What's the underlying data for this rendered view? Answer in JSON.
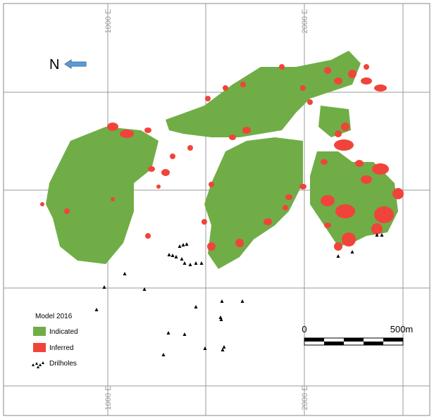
{
  "map": {
    "grid_labels": {
      "top": [
        "1000 E",
        "2000 E"
      ],
      "bottom": [
        "1000 E",
        "2000 E"
      ]
    },
    "north": "N",
    "legend": {
      "title": "Model 2016",
      "items": [
        "Indicated",
        "Inferred",
        "Drilholes"
      ]
    },
    "scale_bar": {
      "start": "0",
      "end": "500m"
    }
  }
}
